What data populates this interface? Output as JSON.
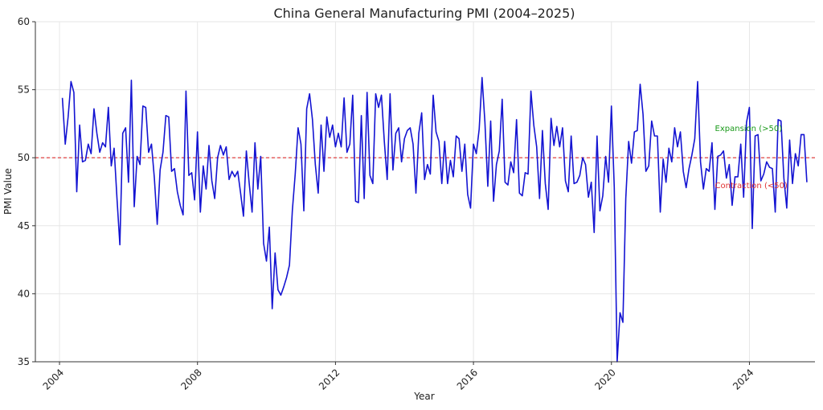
{
  "chart_data": {
    "type": "line",
    "title": "China General Manufacturing PMI (2004–2025)",
    "xlabel": "Year",
    "ylabel": "PMI Value",
    "xlim": [
      2003.3,
      2025.9
    ],
    "ylim": [
      35,
      60
    ],
    "x_ticks": [
      2004,
      2008,
      2012,
      2016,
      2020,
      2024
    ],
    "x_tick_labels": [
      "2004",
      "2008",
      "2012",
      "2016",
      "2020",
      "2024"
    ],
    "y_ticks": [
      35,
      40,
      45,
      50,
      55,
      60
    ],
    "y_tick_labels": [
      "35",
      "40",
      "45",
      "50",
      "55",
      "60"
    ],
    "grid": true,
    "reference_line": {
      "y": 50
    },
    "annotations": [
      {
        "text": "Expansion (>50)",
        "x": 2023.0,
        "y": 52.2,
        "color": "#1a9a1a"
      },
      {
        "text": "Contraction (<50)",
        "x": 2023.0,
        "y": 48.0,
        "color": "#e03030"
      }
    ],
    "series": [
      {
        "color": "#1414d2",
        "x_start": 2004.083,
        "x_step": 0.08333,
        "values": [
          54.4,
          51.0,
          53.0,
          55.6,
          54.8,
          47.5,
          52.4,
          49.7,
          49.8,
          51.0,
          50.3,
          53.6,
          51.8,
          50.4,
          51.1,
          50.8,
          53.7,
          49.4,
          50.7,
          47.0,
          43.6,
          51.8,
          52.2,
          48.2,
          55.7,
          46.4,
          50.1,
          49.5,
          53.8,
          53.7,
          50.4,
          51.0,
          48.5,
          45.1,
          49.1,
          50.4,
          53.1,
          53.0,
          49.0,
          49.2,
          47.5,
          46.5,
          45.8,
          54.9,
          48.7,
          48.9,
          46.9,
          51.9,
          46.0,
          49.4,
          47.7,
          50.9,
          48.3,
          47.0,
          50.0,
          50.9,
          50.2,
          50.8,
          48.4,
          49.0,
          48.6,
          49.0,
          47.4,
          45.7,
          50.5,
          48.1,
          46.0,
          51.1,
          47.7,
          50.1,
          43.7,
          42.4,
          44.9,
          38.9,
          43.0,
          40.3,
          39.9,
          40.5,
          41.2,
          42.1,
          46.1,
          48.8,
          52.2,
          51.0,
          46.1,
          53.6,
          54.7,
          52.8,
          49.5,
          47.4,
          52.4,
          49.0,
          53.0,
          51.5,
          52.4,
          50.8,
          51.8,
          50.8,
          54.4,
          50.4,
          51.0,
          54.6,
          46.8,
          46.7,
          53.1,
          47.0,
          54.8,
          48.7,
          48.1,
          54.7,
          53.7,
          54.6,
          51.2,
          48.4,
          54.7,
          49.1,
          51.8,
          52.2,
          49.7,
          51.4,
          52.0,
          52.2,
          51.0,
          47.4,
          51.8,
          53.3,
          48.4,
          49.5,
          48.8,
          54.6,
          51.9,
          51.2,
          48.1,
          51.2,
          48.1,
          49.8,
          48.6,
          51.6,
          51.4,
          49.0,
          51.0,
          47.3,
          46.3,
          51.0,
          50.3,
          52.1,
          55.9,
          52.6,
          47.9,
          52.7,
          46.8,
          49.5,
          50.5,
          54.3,
          48.2,
          48.0,
          49.7,
          48.9,
          52.8,
          47.4,
          47.2,
          48.9,
          48.8,
          54.9,
          52.4,
          50.8,
          47.0,
          52.0,
          48.1,
          46.2,
          52.9,
          50.9,
          52.3,
          50.8,
          52.2,
          48.3,
          47.5,
          51.6,
          48.1,
          48.2,
          48.7,
          50.0,
          49.5,
          47.1,
          48.2,
          44.5,
          51.6,
          46.1,
          47.2,
          50.1,
          48.2,
          53.8,
          47.8,
          35.0,
          38.6,
          37.9,
          47.0,
          51.2,
          49.6,
          51.9,
          52.0,
          55.4,
          53.2,
          49.0,
          49.4,
          52.7,
          51.6,
          51.6,
          46.0,
          49.9,
          48.2,
          50.7,
          49.7,
          52.2,
          50.8,
          51.9,
          49.0,
          47.8,
          49.2,
          50.2,
          51.4,
          55.6,
          49.7,
          47.7,
          49.2,
          49.0,
          51.1,
          46.2,
          50.1,
          50.2,
          50.5,
          48.5,
          49.5,
          46.5,
          48.6,
          48.6,
          51.0,
          47.1,
          52.6,
          53.7,
          44.8,
          51.6,
          51.7,
          48.3,
          48.8,
          49.7,
          49.3,
          49.2,
          46.0,
          52.8,
          52.7,
          48.5,
          46.3,
          51.3,
          48.1,
          50.3,
          49.4,
          51.7,
          51.7,
          48.2
        ]
      }
    ]
  }
}
